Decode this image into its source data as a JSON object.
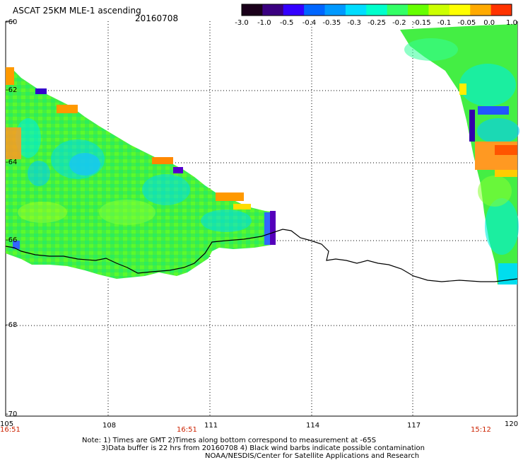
{
  "title": "ASCAT 25KM MLE-1 ascending",
  "date": "20160708",
  "colorbar": {
    "labels": [
      "-3.0",
      "-1.0",
      "-0.5",
      "-0.4",
      "-0.35",
      "-0.3",
      "-0.25",
      "-0.2",
      "-0.15",
      "-0.1",
      "-0.05",
      "0.0",
      "1.0"
    ],
    "colors": [
      "#1a001a",
      "#3a0080",
      "#3300ff",
      "#0066ff",
      "#0099ff",
      "#00ddff",
      "#00ffcc",
      "#33ff66",
      "#66ff00",
      "#ccff00",
      "#ffff00",
      "#ffaa00",
      "#ff3300"
    ]
  },
  "lat_labels": [
    "-60",
    "-62",
    "-64",
    "-66",
    "-68",
    "-70"
  ],
  "lon_labels": [
    "105",
    "108",
    "111",
    "114",
    "117",
    "120"
  ],
  "time_labels": [
    "16:51",
    "16:51",
    "15:12"
  ],
  "notes": {
    "line1": "Note: 1) Times are GMT 2)Times along bottom correspond to measurement at -65S",
    "line2": "3)Data buffer is 22 hrs from 20160708 4) Black wind barbs indicate possible contamination",
    "line3": "NOAA/NESDIS/Center for Satellite Applications and Research"
  }
}
